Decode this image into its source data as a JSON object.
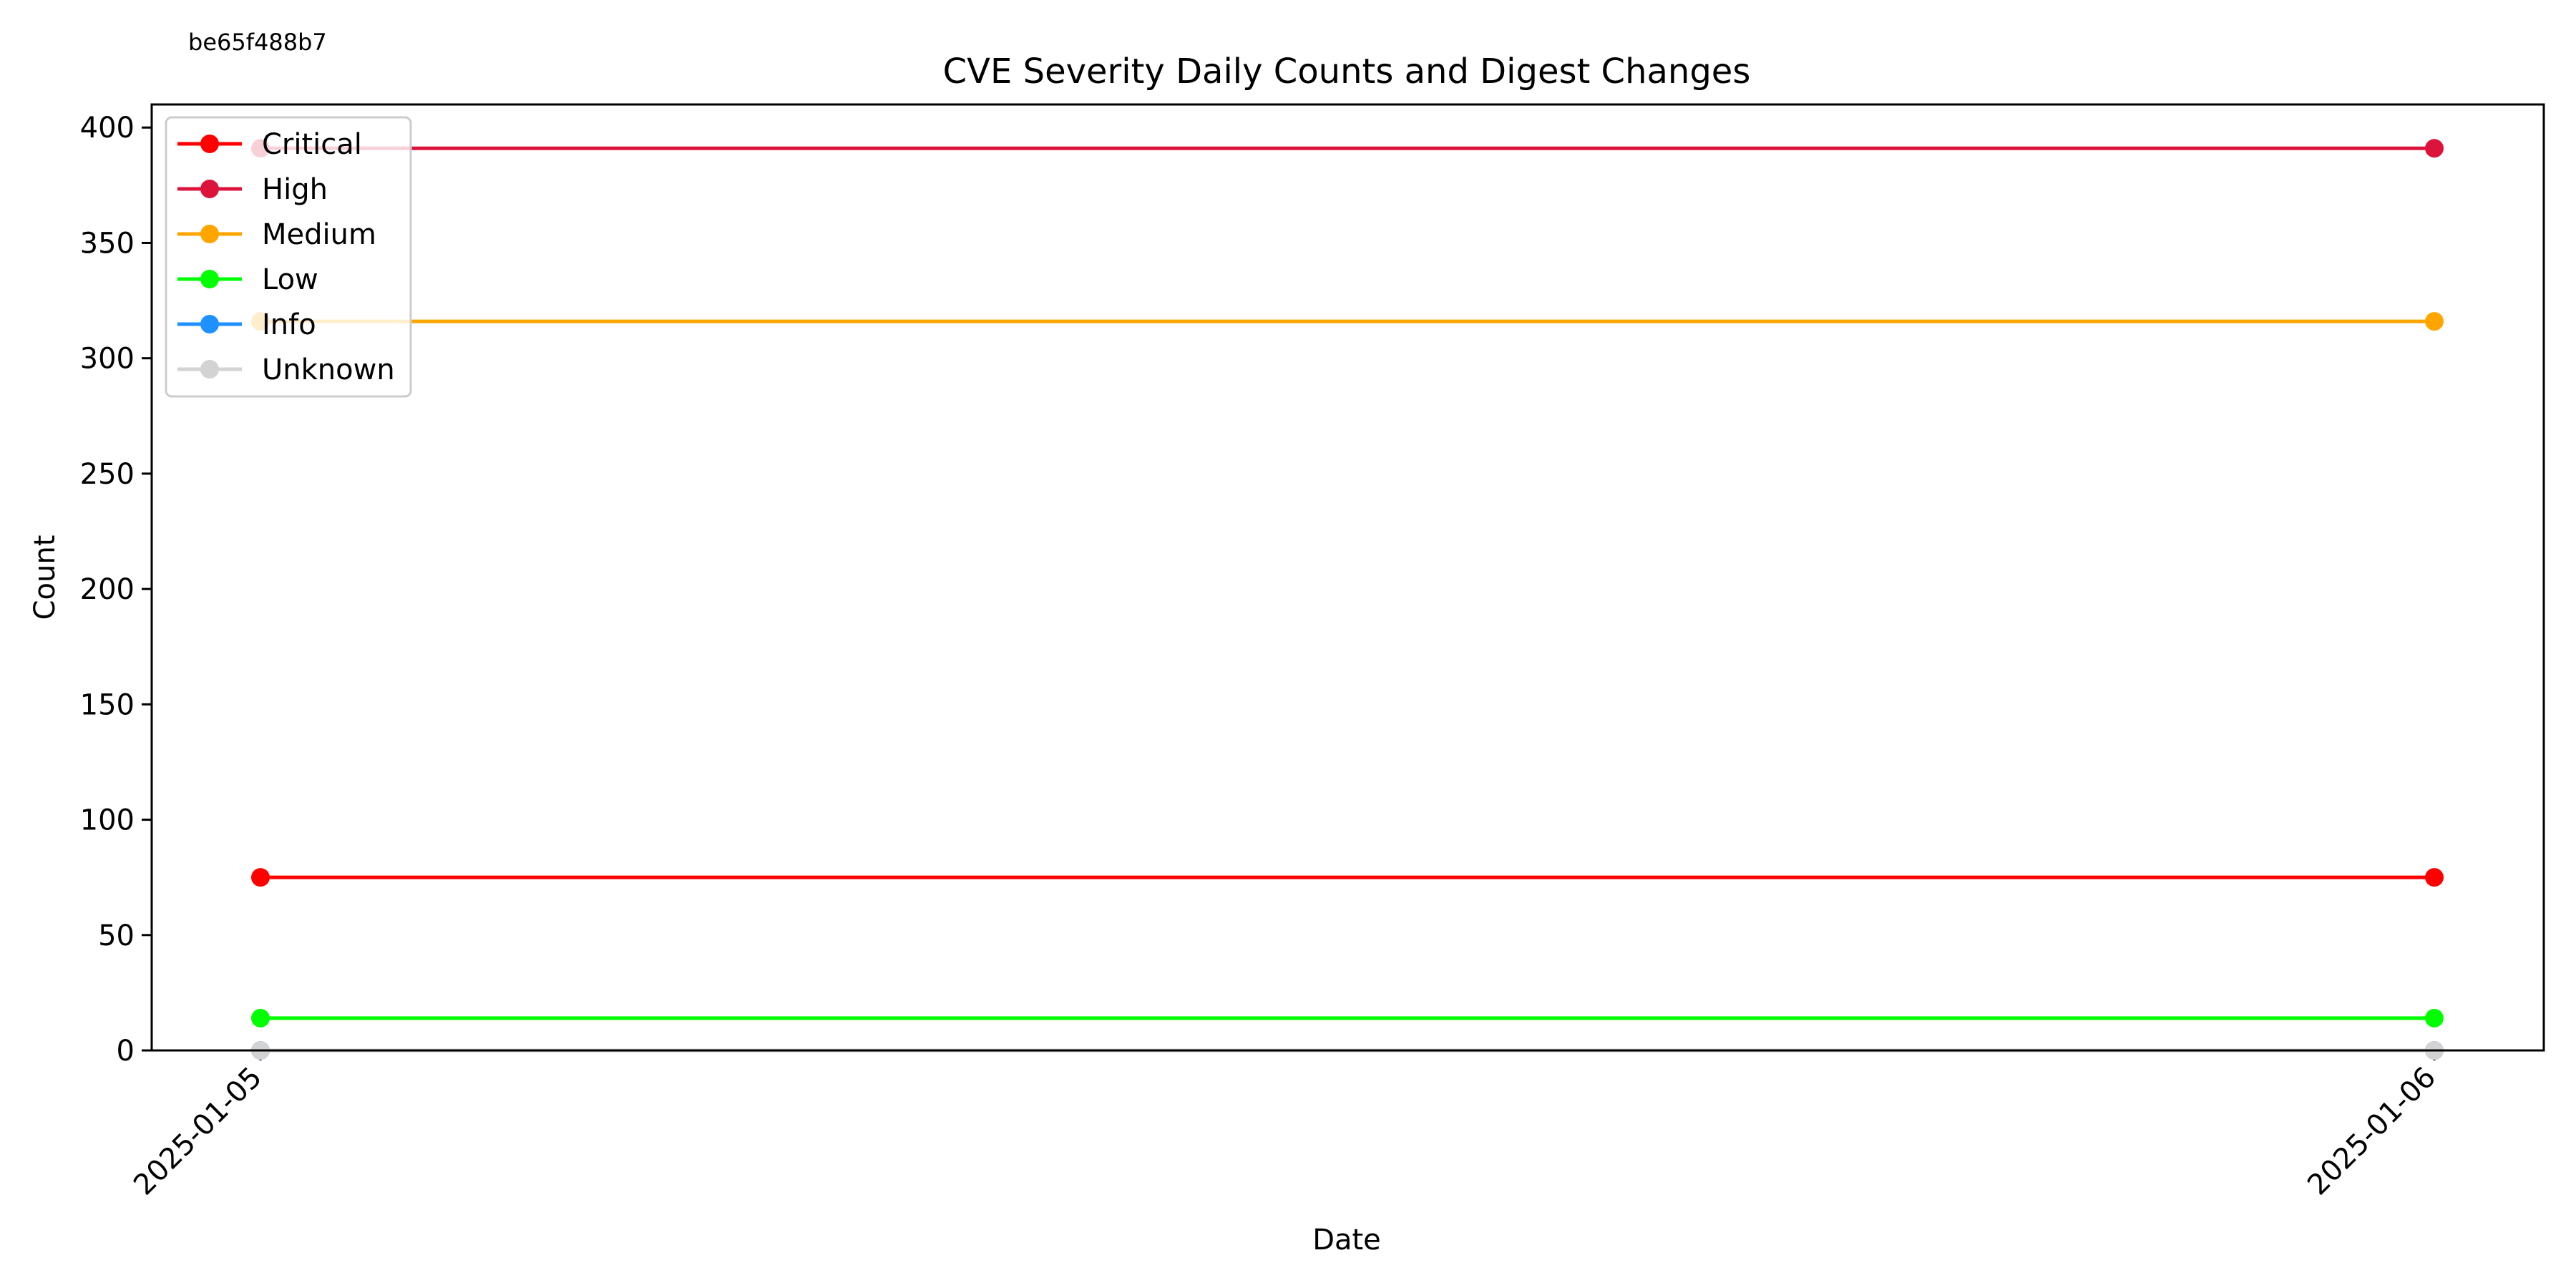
{
  "corner_id": "be65f488b7",
  "chart_data": {
    "type": "line",
    "title": "CVE Severity Daily Counts and Digest Changes",
    "xlabel": "Date",
    "ylabel": "Count",
    "x": [
      "2025-01-05",
      "2025-01-06"
    ],
    "ylim": [
      0,
      410
    ],
    "yticks": [
      0,
      50,
      100,
      150,
      200,
      250,
      300,
      350,
      400
    ],
    "grid": false,
    "legend_position": "top-left",
    "series": [
      {
        "name": "Critical",
        "color": "#ff0000",
        "values": [
          75,
          75
        ]
      },
      {
        "name": "High",
        "color": "#dc143c",
        "values": [
          391,
          391
        ]
      },
      {
        "name": "Medium",
        "color": "#ffa500",
        "values": [
          316,
          316
        ]
      },
      {
        "name": "Low",
        "color": "#00ff00",
        "values": [
          14,
          14
        ]
      },
      {
        "name": "Info",
        "color": "#1e90ff",
        "values": [
          0,
          0
        ]
      },
      {
        "name": "Unknown",
        "color": "#d3d3d3",
        "values": [
          0,
          0
        ]
      }
    ]
  }
}
